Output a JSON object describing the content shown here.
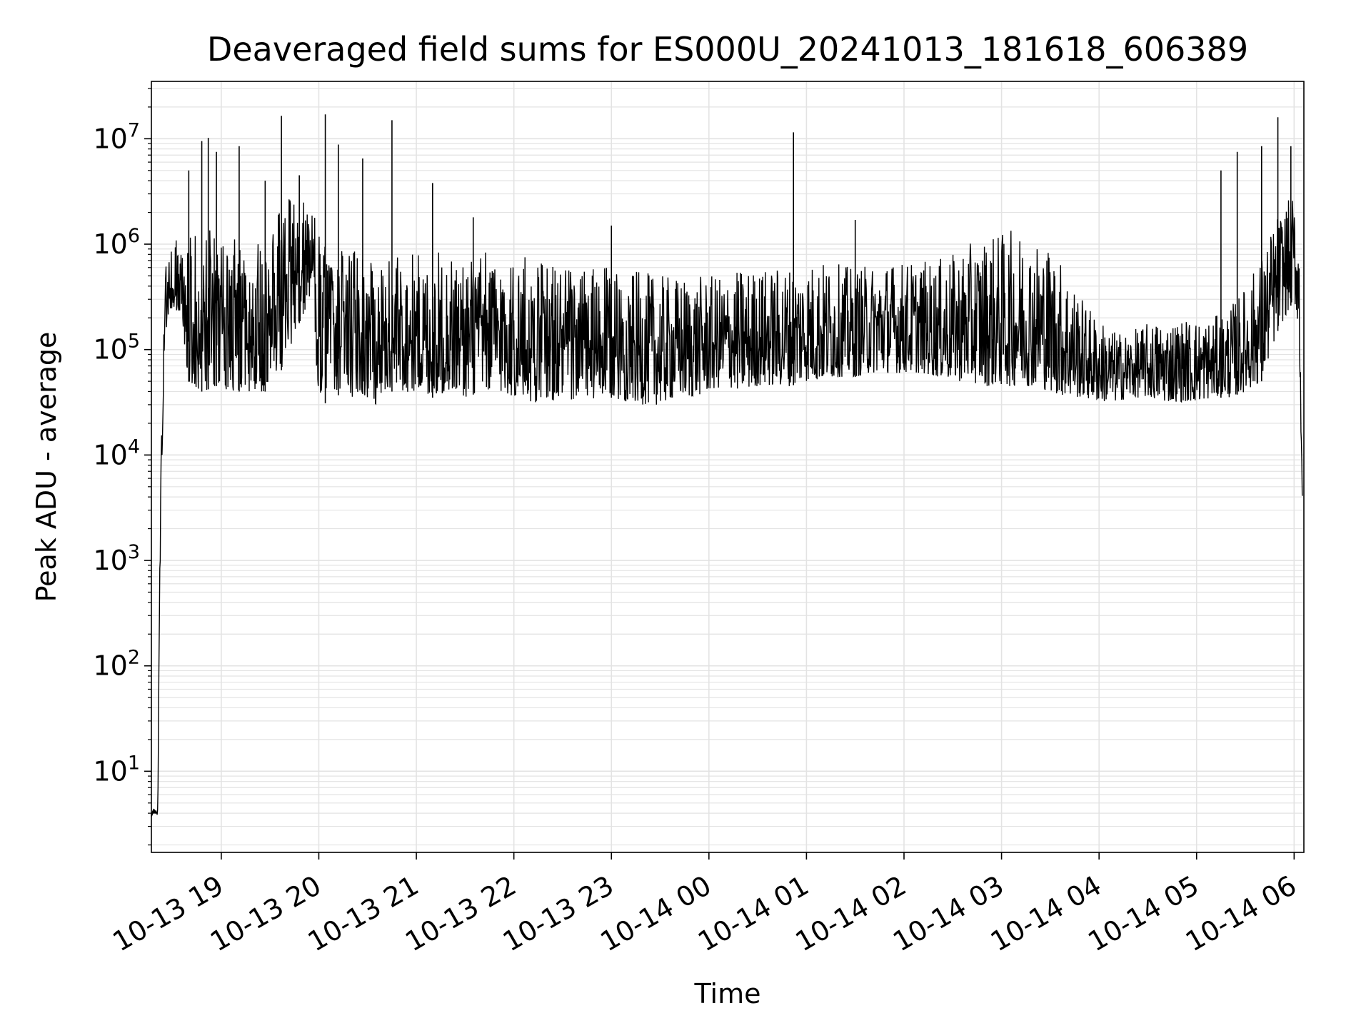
{
  "colors": {
    "background": "#ffffff",
    "line": "#000000",
    "grid": "#e3e3e3",
    "axis": "#000000"
  },
  "chart_data": {
    "type": "line",
    "title": "Deaveraged field sums for ES000U_20241013_181618_606389",
    "xlabel": "Time",
    "ylabel": "Peak ADU - average",
    "y_scale": "log",
    "grid": true,
    "xlim": [
      "2024-10-13 18:17",
      "2024-10-14 06:06"
    ],
    "ylim": [
      1.7,
      35000000
    ],
    "x_tick_labels": [
      "10-13 19",
      "10-13 20",
      "10-13 21",
      "10-13 22",
      "10-13 23",
      "10-14 00",
      "10-14 01",
      "10-14 02",
      "10-14 03",
      "10-14 04",
      "10-14 05",
      "10-14 06"
    ],
    "x_ticks": [
      "2024-10-13 19:00",
      "2024-10-13 20:00",
      "2024-10-13 21:00",
      "2024-10-13 22:00",
      "2024-10-13 23:00",
      "2024-10-14 00:00",
      "2024-10-14 01:00",
      "2024-10-14 02:00",
      "2024-10-14 03:00",
      "2024-10-14 04:00",
      "2024-10-14 05:00",
      "2024-10-14 06:00"
    ],
    "y_ticks": [
      10,
      100,
      1000,
      10000,
      100000,
      1000000,
      10000000
    ],
    "y_tick_labels": [
      {
        "base": "10",
        "exp": "1"
      },
      {
        "base": "10",
        "exp": "2"
      },
      {
        "base": "10",
        "exp": "3"
      },
      {
        "base": "10",
        "exp": "4"
      },
      {
        "base": "10",
        "exp": "5"
      },
      {
        "base": "10",
        "exp": "6"
      },
      {
        "base": "10",
        "exp": "7"
      }
    ],
    "series": [
      {
        "x": [
          "2024-10-13 18:17",
          "2024-10-13 18:21",
          "2024-10-13 18:22",
          "2024-10-13 18:24",
          "2024-10-13 18:25",
          "2024-10-13 18:27",
          "2024-10-13 18:30",
          "2024-10-13 18:35",
          "2024-10-13 18:40",
          "2024-10-13 18:45",
          "2024-10-13 18:50",
          "2024-10-13 18:55",
          "2024-10-13 19:00",
          "2024-10-13 19:05",
          "2024-10-13 19:10",
          "2024-10-13 19:15",
          "2024-10-13 19:20",
          "2024-10-13 19:25",
          "2024-10-13 19:30",
          "2024-10-13 19:35",
          "2024-10-13 19:40",
          "2024-10-13 19:45",
          "2024-10-13 19:50",
          "2024-10-13 19:55",
          "2024-10-13 20:00",
          "2024-10-13 20:05",
          "2024-10-13 20:10",
          "2024-10-13 20:15",
          "2024-10-13 20:20",
          "2024-10-13 20:25",
          "2024-10-13 20:30",
          "2024-10-13 20:35",
          "2024-10-13 20:40",
          "2024-10-13 20:45",
          "2024-10-13 20:50",
          "2024-10-13 20:55",
          "2024-10-13 21:00",
          "2024-10-13 21:10",
          "2024-10-13 21:20",
          "2024-10-13 21:30",
          "2024-10-13 21:40",
          "2024-10-13 21:50",
          "2024-10-13 22:00",
          "2024-10-13 22:10",
          "2024-10-13 22:20",
          "2024-10-13 22:30",
          "2024-10-13 22:40",
          "2024-10-13 22:50",
          "2024-10-13 23:00",
          "2024-10-13 23:10",
          "2024-10-13 23:20",
          "2024-10-13 23:30",
          "2024-10-13 23:40",
          "2024-10-13 23:50",
          "2024-10-14 00:00",
          "2024-10-14 00:10",
          "2024-10-14 00:20",
          "2024-10-14 00:30",
          "2024-10-14 00:40",
          "2024-10-14 00:50",
          "2024-10-14 01:00",
          "2024-10-14 01:10",
          "2024-10-14 01:20",
          "2024-10-14 01:30",
          "2024-10-14 01:40",
          "2024-10-14 01:50",
          "2024-10-14 02:00",
          "2024-10-14 02:10",
          "2024-10-14 02:20",
          "2024-10-14 02:30",
          "2024-10-14 02:40",
          "2024-10-14 02:50",
          "2024-10-14 03:00",
          "2024-10-14 03:10",
          "2024-10-14 03:20",
          "2024-10-14 03:30",
          "2024-10-14 03:40",
          "2024-10-14 03:50",
          "2024-10-14 04:00",
          "2024-10-14 04:10",
          "2024-10-14 04:20",
          "2024-10-14 04:30",
          "2024-10-14 04:40",
          "2024-10-14 04:50",
          "2024-10-14 05:00",
          "2024-10-14 05:10",
          "2024-10-14 05:20",
          "2024-10-14 05:30",
          "2024-10-14 05:40",
          "2024-10-14 05:50",
          "2024-10-14 06:00",
          "2024-10-14 06:03",
          "2024-10-14 06:05"
        ],
        "y_low": [
          3.8,
          3.8,
          400,
          20000,
          100000,
          200000,
          250000,
          200000,
          50000,
          40000,
          40000,
          45000,
          45000,
          40000,
          40000,
          40000,
          40000,
          40000,
          40000,
          60000,
          70000,
          150000,
          200000,
          300000,
          35000,
          30000,
          35000,
          40000,
          35000,
          40000,
          35000,
          30000,
          35000,
          40000,
          35000,
          40000,
          40000,
          35000,
          40000,
          35000,
          40000,
          40000,
          35000,
          30000,
          35000,
          30000,
          35000,
          32000,
          35000,
          32000,
          30000,
          30000,
          35000,
          35000,
          40000,
          45000,
          40000,
          45000,
          45000,
          45000,
          50000,
          50000,
          55000,
          55000,
          60000,
          60000,
          60000,
          60000,
          55000,
          50000,
          50000,
          45000,
          45000,
          45000,
          45000,
          40000,
          35000,
          35000,
          32000,
          32000,
          35000,
          35000,
          32000,
          32000,
          32000,
          35000,
          35000,
          40000,
          50000,
          150000,
          300000,
          150000,
          3000
        ],
        "y_high": [
          4.5,
          4.5,
          1200,
          150000,
          500000,
          900000,
          1200000,
          1000000,
          1500000,
          2000000,
          1500000,
          1300000,
          1200000,
          1000000,
          1200000,
          1000000,
          1300000,
          1000000,
          1500000,
          2000000,
          2500000,
          3000000,
          3500000,
          3000000,
          1500000,
          900000,
          800000,
          900000,
          900000,
          900000,
          850000,
          850000,
          850000,
          800000,
          850000,
          850000,
          850000,
          850000,
          850000,
          800000,
          850000,
          850000,
          800000,
          800000,
          700000,
          700000,
          600000,
          600000,
          600000,
          550000,
          550000,
          500000,
          500000,
          500000,
          500000,
          500000,
          600000,
          600000,
          600000,
          650000,
          700000,
          700000,
          650000,
          600000,
          650000,
          700000,
          700000,
          700000,
          700000,
          800000,
          1000000,
          1200000,
          1300000,
          1400000,
          1200000,
          1000000,
          600000,
          300000,
          200000,
          150000,
          150000,
          180000,
          200000,
          200000,
          200000,
          200000,
          250000,
          400000,
          800000,
          2000000,
          3000000,
          1500000,
          20000
        ]
      }
    ],
    "spikes": [
      {
        "x": "2024-10-13 18:40",
        "y": 5000000
      },
      {
        "x": "2024-10-13 18:48",
        "y": 9500000
      },
      {
        "x": "2024-10-13 18:52",
        "y": 10200000
      },
      {
        "x": "2024-10-13 18:57",
        "y": 7500000
      },
      {
        "x": "2024-10-13 19:11",
        "y": 8500000
      },
      {
        "x": "2024-10-13 19:27",
        "y": 4000000
      },
      {
        "x": "2024-10-13 19:37",
        "y": 16500000
      },
      {
        "x": "2024-10-13 19:48",
        "y": 4500000
      },
      {
        "x": "2024-10-13 20:04",
        "y": 17000000
      },
      {
        "x": "2024-10-13 20:12",
        "y": 8800000
      },
      {
        "x": "2024-10-13 20:27",
        "y": 6500000
      },
      {
        "x": "2024-10-13 20:45",
        "y": 15000000
      },
      {
        "x": "2024-10-13 21:10",
        "y": 3800000
      },
      {
        "x": "2024-10-13 21:35",
        "y": 1800000
      },
      {
        "x": "2024-10-13 23:00",
        "y": 1500000
      },
      {
        "x": "2024-10-14 00:52",
        "y": 11500000
      },
      {
        "x": "2024-10-14 01:30",
        "y": 1700000
      },
      {
        "x": "2024-10-14 05:15",
        "y": 5000000
      },
      {
        "x": "2024-10-14 05:25",
        "y": 7500000
      },
      {
        "x": "2024-10-14 05:40",
        "y": 8500000
      },
      {
        "x": "2024-10-14 05:50",
        "y": 16000000
      },
      {
        "x": "2024-10-14 05:58",
        "y": 8500000
      }
    ]
  }
}
